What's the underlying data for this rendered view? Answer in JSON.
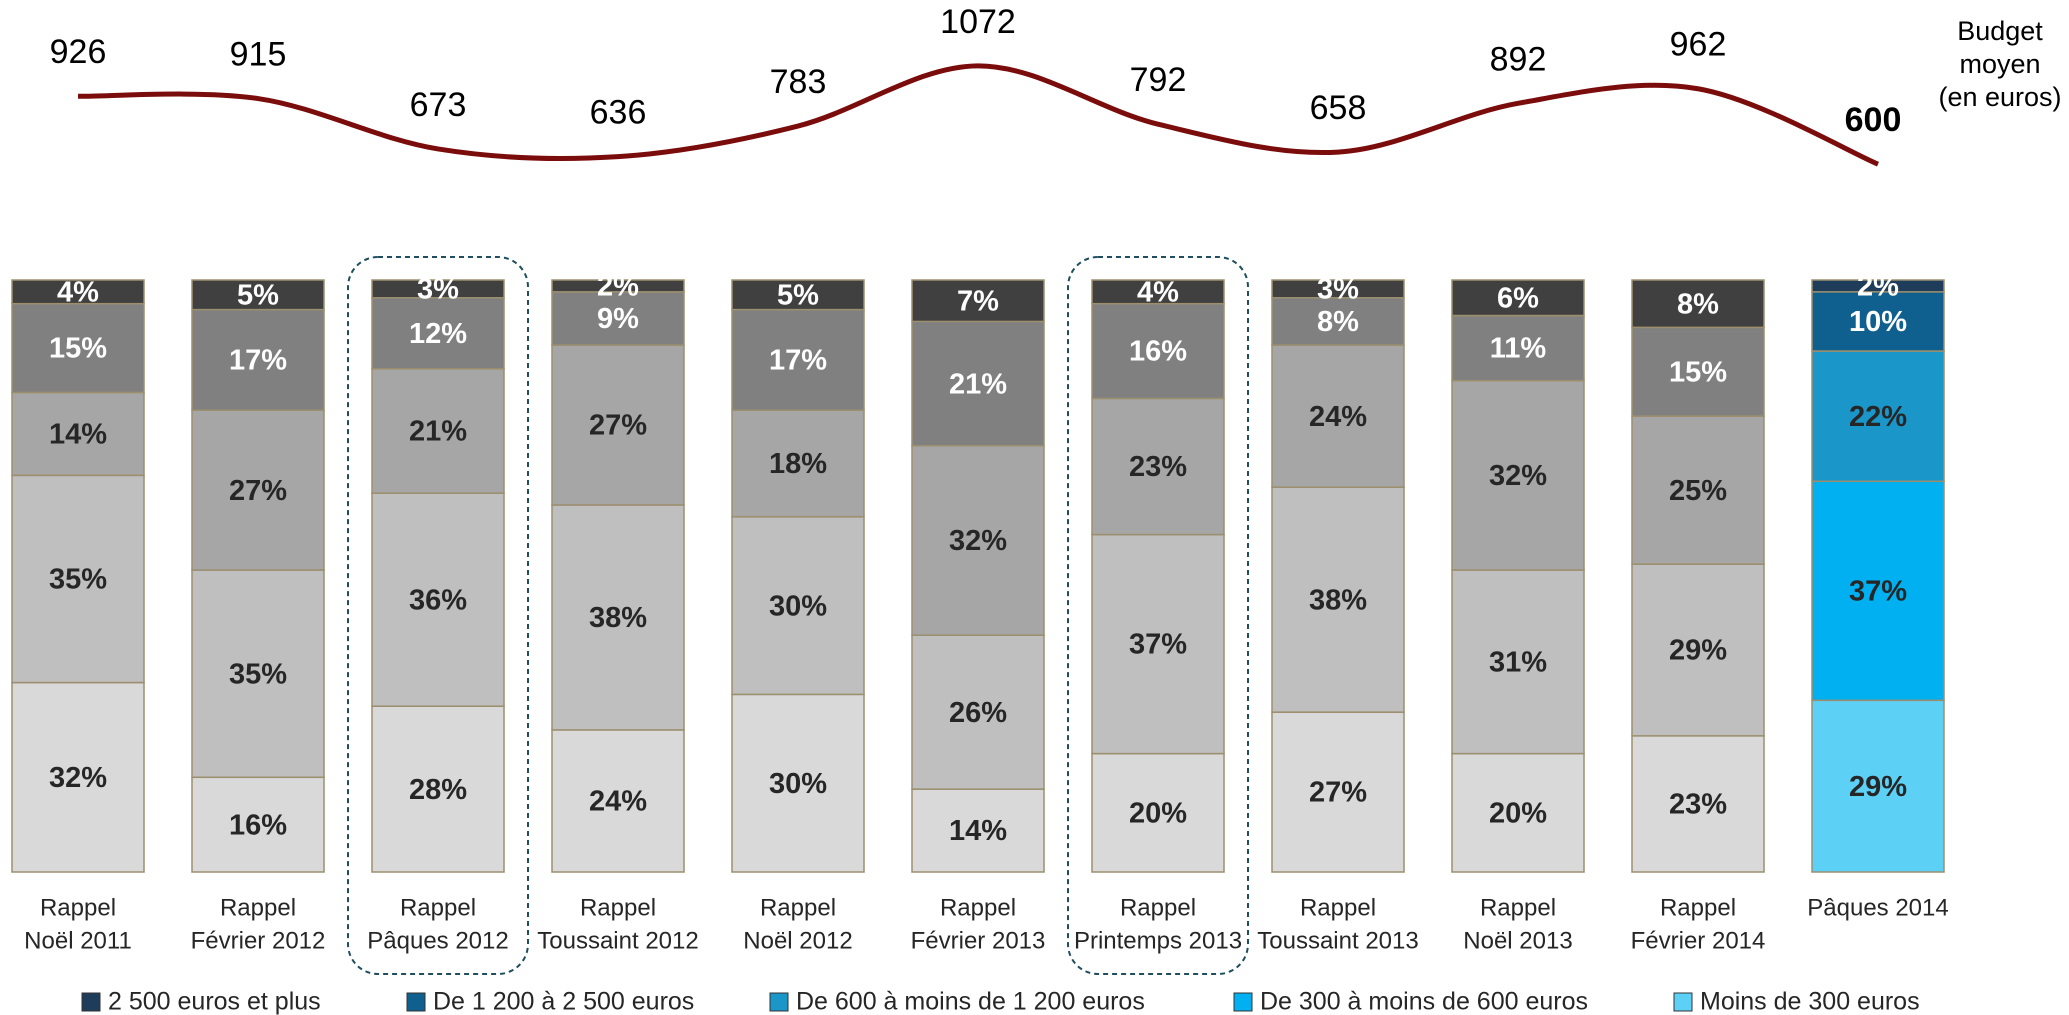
{
  "chart_data": {
    "type": "stacked_bar",
    "categories": [
      [
        "Rappel",
        "Noël 2011"
      ],
      [
        "Rappel",
        "Février 2012"
      ],
      [
        "Rappel",
        "Pâques 2012"
      ],
      [
        "Rappel",
        "Toussaint 2012"
      ],
      [
        "Rappel",
        "Noël 2012"
      ],
      [
        "Rappel",
        "Février 2013"
      ],
      [
        "Rappel",
        "Printemps 2013"
      ],
      [
        "Rappel",
        "Toussaint 2013"
      ],
      [
        "Rappel",
        "Noël 2013"
      ],
      [
        "Rappel",
        "Février 2014"
      ],
      [
        "Pâques 2014"
      ]
    ],
    "ylim": [
      0,
      100
    ],
    "series": [
      {
        "name": "2 500 euros et plus",
        "color": "#1f3c5a",
        "past_color": "#404040",
        "values": [
          4,
          5,
          3,
          2,
          5,
          7,
          4,
          3,
          6,
          8,
          2
        ],
        "value_labels": [
          "4%",
          "5%",
          "3%",
          "2%",
          "5%",
          "7%",
          "4%",
          "3%",
          "6%",
          "8%",
          "2%"
        ]
      },
      {
        "name": "De 1 200 à 2 500 euros",
        "color": "#0f5f8f",
        "past_color": "#808080",
        "values": [
          15,
          17,
          12,
          9,
          17,
          21,
          16,
          8,
          11,
          15,
          10
        ],
        "value_labels": [
          "15%",
          "17%",
          "12%",
          "9%",
          "17%",
          "21%",
          "16%",
          "8%",
          "11%",
          "15%",
          "10%"
        ]
      },
      {
        "name": "De 600 à moins de 1 200 euros",
        "color": "#1a96c8",
        "past_color": "#a6a6a6",
        "values": [
          14,
          27,
          21,
          27,
          18,
          32,
          23,
          24,
          32,
          25,
          22
        ],
        "value_labels": [
          "14%",
          "27%",
          "21%",
          "27%",
          "18%",
          "32%",
          "23%",
          "24%",
          "32%",
          "25%",
          "22%"
        ]
      },
      {
        "name": "De 300 à moins de 600 euros",
        "color": "#00b0f0",
        "past_color": "#bfbfbf",
        "values": [
          35,
          35,
          36,
          38,
          30,
          26,
          37,
          38,
          31,
          29,
          37
        ],
        "value_labels": [
          "35%",
          "35%",
          "36%",
          "38%",
          "30%",
          "26%",
          "37%",
          "38%",
          "31%",
          "29%",
          "37%"
        ]
      },
      {
        "name": "Moins de 300 euros",
        "color": "#5dd0f5",
        "past_color": "#d9d9d9",
        "values": [
          32,
          16,
          28,
          24,
          30,
          14,
          20,
          27,
          20,
          23,
          29
        ],
        "value_labels": [
          "32%",
          "16%",
          "28%",
          "24%",
          "30%",
          "14%",
          "20%",
          "27%",
          "20%",
          "23%",
          "29%"
        ]
      }
    ],
    "line": {
      "label": [
        "Budget",
        "moyen",
        "(en euros)"
      ],
      "color": "#7b0c0c",
      "values": [
        926,
        915,
        673,
        636,
        783,
        1072,
        792,
        658,
        892,
        962,
        600
      ],
      "y2lim": [
        500,
        1100
      ]
    }
  }
}
